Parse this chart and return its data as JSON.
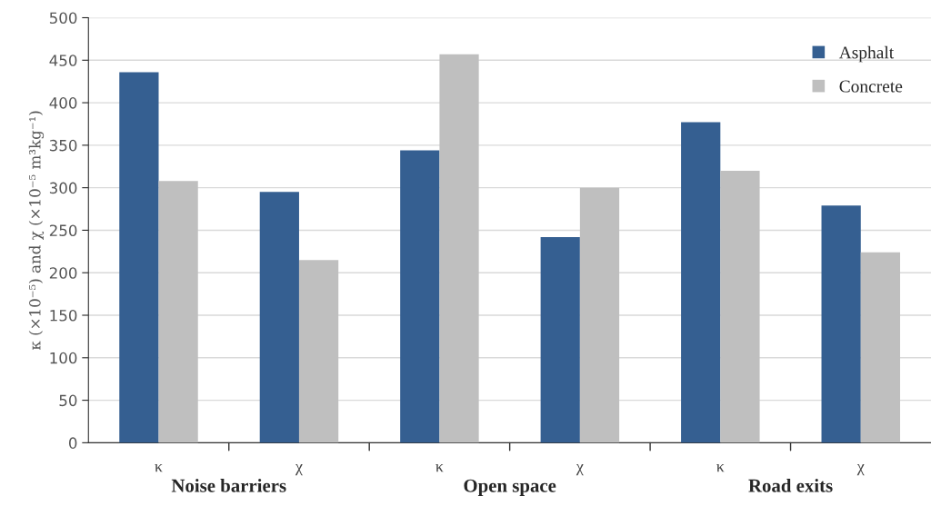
{
  "chart_data": {
    "type": "bar",
    "categories": [
      "κ",
      "χ",
      "κ",
      "χ",
      "κ",
      "χ"
    ],
    "series": [
      {
        "name": "Asphalt",
        "color": "#355f91",
        "values": [
          436,
          295,
          344,
          242,
          377,
          279
        ]
      },
      {
        "name": "Concrete",
        "color": "#bfbfbf",
        "values": [
          308,
          215,
          457,
          300,
          320,
          224
        ]
      }
    ],
    "ylabel": "κ (×10⁻⁵) and χ (×10⁻⁵ m³kg⁻¹)",
    "annotations": [
      "Noise barriers",
      "Open space",
      "Road exits"
    ],
    "ylim": [
      0,
      500
    ],
    "yticks": [
      0,
      50,
      100,
      150,
      200,
      250,
      300,
      350,
      400,
      450,
      500
    ],
    "grid": "y",
    "legend": "top right"
  }
}
